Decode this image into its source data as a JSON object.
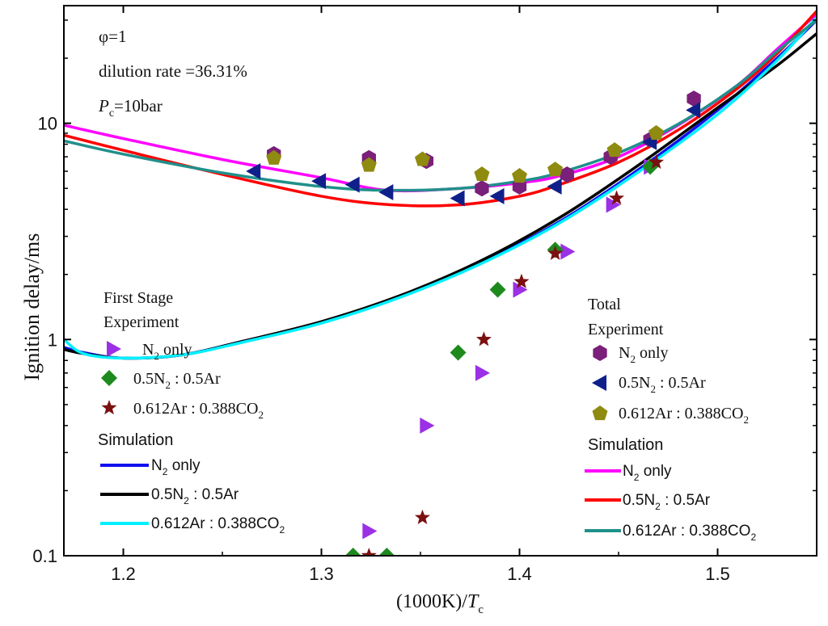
{
  "chart_data": {
    "type": "scatter",
    "title": "",
    "xlabel_main": "(1000K)/",
    "xlabel_var": "T",
    "xlabel_sub": "c",
    "ylabel": "Ignition delay/ms",
    "xlim": [
      1.17,
      1.55
    ],
    "ylim": [
      0.1,
      35
    ],
    "yscale": "log",
    "x_ticks": [
      1.2,
      1.3,
      1.4,
      1.5
    ],
    "x_tick_labels": [
      "1.2",
      "1.3",
      "1.4",
      "1.5"
    ],
    "y_ticks": [
      0.1,
      1,
      10
    ],
    "y_tick_labels": [
      "0.1",
      "1",
      "10"
    ],
    "annotations": {
      "phi": "φ=1",
      "dilution": "dilution rate =36.31%",
      "pressure_var": "P",
      "pressure_sub": "c",
      "pressure_val": "=10bar"
    },
    "legends": {
      "first_stage": {
        "title": "First Stage",
        "experiment_title": "Experiment",
        "simulation_title": "Simulation"
      },
      "total": {
        "title": "Total",
        "experiment_title": "Experiment",
        "simulation_title": "Simulation"
      }
    },
    "colors": {
      "fs_n2": "#9b30e6",
      "fs_mix": "#1e8a1e",
      "fs_co2": "#7a1010",
      "tot_n2": "#7a1f7a",
      "tot_mix": "#10208a",
      "tot_co2": "#8f8a10",
      "sim_fs_n2": "#1010ee",
      "sim_fs_mix": "#000000",
      "sim_fs_co2": "#00f0ff",
      "sim_tot_n2": "#ff00ff",
      "sim_tot_mix": "#ff0000",
      "sim_tot_co2": "#20908a"
    },
    "experiment_series": [
      {
        "key": "fs_n2",
        "group": "first_stage",
        "marker": "tri-right",
        "label": "only",
        "gas_prefix": "N",
        "gas_sub": "2",
        "gas_rest": " only",
        "x": [
          1.324,
          1.353,
          1.381,
          1.4,
          1.424,
          1.447,
          1.466
        ],
        "y": [
          0.13,
          0.4,
          0.7,
          1.7,
          2.55,
          4.2,
          6.3
        ]
      },
      {
        "key": "fs_mix",
        "group": "first_stage",
        "marker": "diamond",
        "label": "0.5N2 : 0.5Ar",
        "x": [
          1.316,
          1.333,
          1.369,
          1.389,
          1.418,
          1.466
        ],
        "y": [
          0.1,
          0.1,
          0.87,
          1.7,
          2.6,
          6.3
        ]
      },
      {
        "key": "fs_co2",
        "group": "first_stage",
        "marker": "star",
        "label": "0.612Ar : 0.388CO2",
        "x": [
          1.324,
          1.351,
          1.382,
          1.401,
          1.418,
          1.449,
          1.469
        ],
        "y": [
          0.1,
          0.15,
          1.0,
          1.85,
          2.5,
          4.5,
          6.6
        ]
      },
      {
        "key": "tot_n2",
        "group": "total",
        "marker": "hexagon",
        "label": "N2 only",
        "x": [
          1.276,
          1.324,
          1.353,
          1.381,
          1.4,
          1.424,
          1.446,
          1.466,
          1.488
        ],
        "y": [
          7.2,
          6.9,
          6.7,
          5.0,
          5.1,
          5.8,
          7.0,
          8.4,
          13.0
        ]
      },
      {
        "key": "tot_mix",
        "group": "total",
        "marker": "tri-left",
        "label": "0.5N2 : 0.5Ar",
        "x": [
          1.266,
          1.299,
          1.316,
          1.333,
          1.369,
          1.389,
          1.418,
          1.466,
          1.488
        ],
        "y": [
          6.0,
          5.4,
          5.2,
          4.8,
          4.5,
          4.6,
          5.1,
          8.2,
          11.5
        ]
      },
      {
        "key": "tot_co2",
        "group": "total",
        "marker": "pentagon",
        "label": "0.612Ar : 0.388CO2",
        "x": [
          1.276,
          1.324,
          1.351,
          1.381,
          1.4,
          1.418,
          1.448,
          1.469
        ],
        "y": [
          6.9,
          6.4,
          6.8,
          5.8,
          5.7,
          6.1,
          7.5,
          9.0
        ]
      }
    ],
    "simulation_series": [
      {
        "key": "sim_fs_n2",
        "group": "first_stage",
        "label": "N2 only",
        "x": [
          1.17,
          1.18,
          1.2,
          1.23,
          1.26,
          1.3,
          1.34,
          1.38,
          1.42,
          1.46,
          1.5,
          1.53,
          1.55
        ],
        "y": [
          0.92,
          0.87,
          0.82,
          0.85,
          0.98,
          1.2,
          1.58,
          2.25,
          3.5,
          6.1,
          11.5,
          20.0,
          30.0
        ]
      },
      {
        "key": "sim_fs_mix",
        "group": "first_stage",
        "label": "0.5N2 : 0.5Ar",
        "x": [
          1.17,
          1.18,
          1.2,
          1.23,
          1.26,
          1.3,
          1.34,
          1.38,
          1.42,
          1.46,
          1.5,
          1.53,
          1.55
        ],
        "y": [
          0.9,
          0.86,
          0.82,
          0.85,
          0.98,
          1.21,
          1.6,
          2.3,
          3.65,
          6.4,
          11.8,
          18.5,
          26.0
        ]
      },
      {
        "key": "sim_fs_co2",
        "group": "first_stage",
        "label": "0.612Ar : 0.388CO2",
        "x": [
          1.17,
          1.18,
          1.2,
          1.23,
          1.26,
          1.3,
          1.34,
          1.38,
          1.42,
          1.46,
          1.5,
          1.53,
          1.55
        ],
        "y": [
          1.0,
          0.86,
          0.82,
          0.85,
          0.97,
          1.19,
          1.57,
          2.23,
          3.45,
          5.95,
          11.0,
          19.5,
          31.0
        ]
      },
      {
        "key": "sim_tot_n2",
        "group": "total",
        "label": "N2 only",
        "x": [
          1.17,
          1.2,
          1.25,
          1.3,
          1.333,
          1.37,
          1.4,
          1.42,
          1.45,
          1.48,
          1.51,
          1.53,
          1.55
        ],
        "y": [
          9.8,
          8.5,
          6.8,
          5.6,
          4.9,
          5.0,
          5.3,
          5.7,
          7.0,
          9.8,
          15.0,
          22.0,
          32.0
        ]
      },
      {
        "key": "sim_tot_mix",
        "group": "total",
        "label": "0.5N2 : 0.5Ar",
        "x": [
          1.17,
          1.2,
          1.25,
          1.3,
          1.335,
          1.37,
          1.4,
          1.42,
          1.45,
          1.48,
          1.51,
          1.53,
          1.55
        ],
        "y": [
          8.8,
          7.5,
          5.8,
          4.6,
          4.2,
          4.2,
          4.6,
          5.2,
          6.6,
          9.3,
          14.5,
          21.0,
          33.0
        ]
      },
      {
        "key": "sim_tot_co2",
        "group": "total",
        "label": "0.612Ar : 0.388CO2",
        "x": [
          1.17,
          1.2,
          1.25,
          1.3,
          1.333,
          1.37,
          1.4,
          1.42,
          1.45,
          1.48,
          1.51,
          1.53,
          1.55
        ],
        "y": [
          8.3,
          7.2,
          5.9,
          5.1,
          4.9,
          5.0,
          5.4,
          5.9,
          7.3,
          9.9,
          15.0,
          21.5,
          30.0
        ]
      }
    ],
    "legend_labels": {
      "n2_sym": "N",
      "n2_sub": "2",
      "n2_rest": " only",
      "mix_a": "0.5N",
      "mix_sub": "2",
      "mix_b": " : 0.5Ar",
      "co2_a": "0.612Ar : 0.388CO",
      "co2_sub": "2"
    }
  }
}
